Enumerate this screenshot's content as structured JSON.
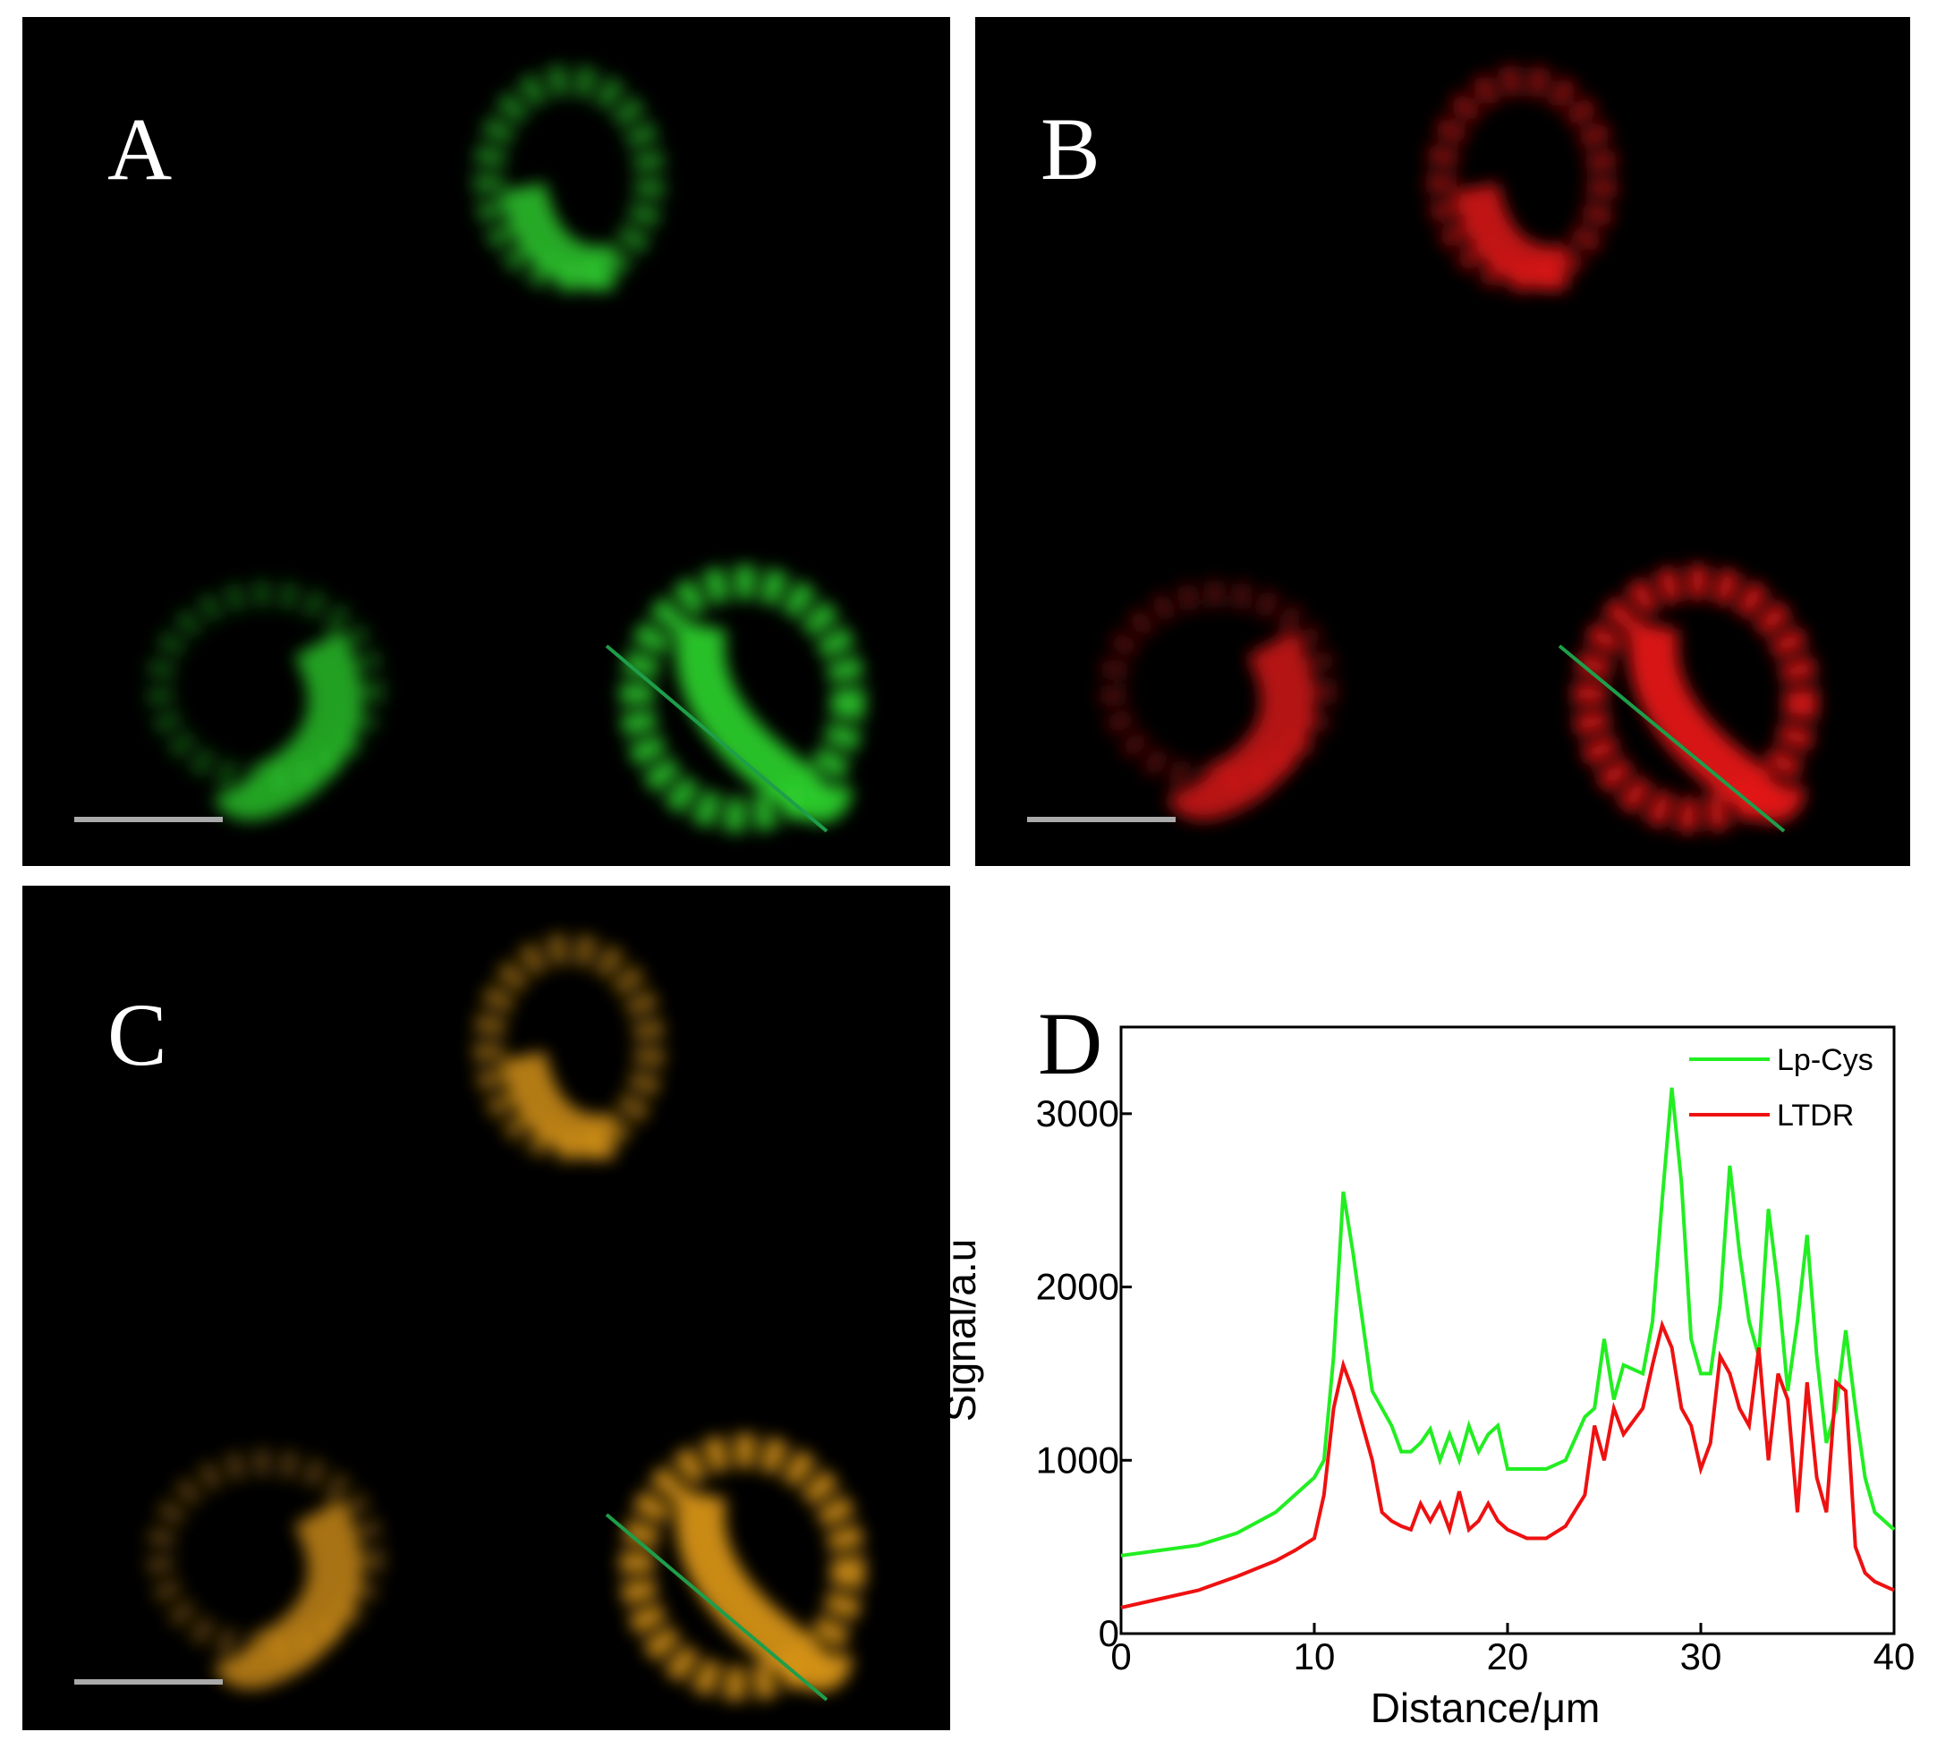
{
  "panels": {
    "a": "A",
    "b": "B",
    "c": "C"
  },
  "chart_data": {
    "type": "line",
    "title": "D",
    "x_label": "Distance/μm",
    "y_label": "Signal/a.u",
    "x": [
      0,
      2,
      4,
      6,
      8,
      9,
      10,
      10.5,
      11,
      11.5,
      12,
      12.5,
      13,
      13.5,
      14,
      14.5,
      15,
      15.5,
      16,
      16.5,
      17,
      17.5,
      18,
      18.5,
      19,
      19.5,
      20,
      21,
      22,
      23,
      24,
      24.5,
      25,
      25.5,
      26,
      27,
      27.5,
      28,
      28.5,
      29,
      29.5,
      30,
      30.5,
      31,
      31.5,
      32,
      32.5,
      33,
      33.5,
      34,
      34.5,
      35,
      35.5,
      36,
      36.5,
      37,
      37.5,
      38,
      38.5,
      39,
      40
    ],
    "series": [
      {
        "name": "Lp-Cys",
        "color": "#22ee22",
        "values": [
          450,
          480,
          510,
          580,
          700,
          800,
          900,
          1000,
          1600,
          2550,
          2200,
          1800,
          1400,
          1300,
          1200,
          1050,
          1050,
          1100,
          1180,
          1000,
          1150,
          1000,
          1200,
          1050,
          1150,
          1200,
          950,
          950,
          950,
          1000,
          1250,
          1300,
          1700,
          1350,
          1550,
          1500,
          1800,
          2500,
          3150,
          2600,
          1700,
          1500,
          1500,
          1900,
          2700,
          2200,
          1800,
          1600,
          2450,
          2000,
          1400,
          1800,
          2300,
          1600,
          1100,
          1300,
          1750,
          1300,
          900,
          700,
          600
        ]
      },
      {
        "name": "LTDR",
        "color": "#ee1111",
        "values": [
          150,
          200,
          250,
          330,
          420,
          480,
          550,
          800,
          1300,
          1550,
          1400,
          1200,
          1000,
          700,
          650,
          620,
          600,
          750,
          650,
          750,
          600,
          820,
          600,
          650,
          750,
          650,
          600,
          550,
          550,
          620,
          800,
          1200,
          1000,
          1300,
          1150,
          1300,
          1550,
          1780,
          1650,
          1300,
          1200,
          950,
          1100,
          1600,
          1500,
          1300,
          1200,
          1650,
          1000,
          1500,
          1350,
          700,
          1450,
          900,
          700,
          1450,
          1400,
          500,
          350,
          300,
          250
        ]
      }
    ],
    "xlim": [
      0,
      40
    ],
    "xticks": [
      0,
      10,
      20,
      30,
      40
    ],
    "ylim": [
      0,
      3500
    ],
    "yticks": [
      0,
      1000,
      2000,
      3000
    ],
    "legend": "upper right"
  }
}
